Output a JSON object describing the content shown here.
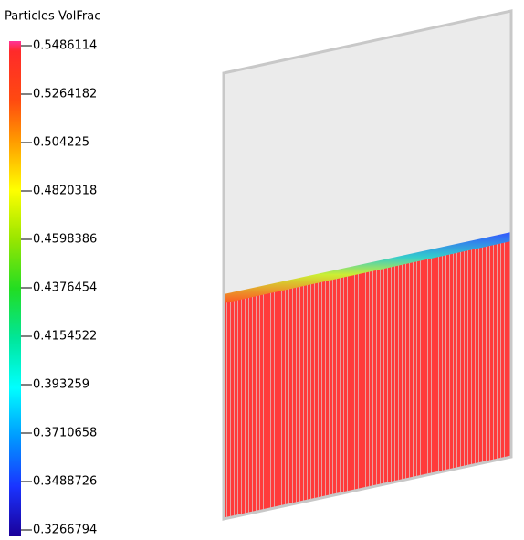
{
  "colorbar": {
    "title": "Particles VolFrac",
    "ticks": [
      "0.5486114",
      "0.5264182",
      "0.504225",
      "0.4820318",
      "0.4598386",
      "0.4376454",
      "0.4154522",
      "0.393259",
      "0.3710658",
      "0.3488726",
      "0.3266794"
    ]
  }
}
